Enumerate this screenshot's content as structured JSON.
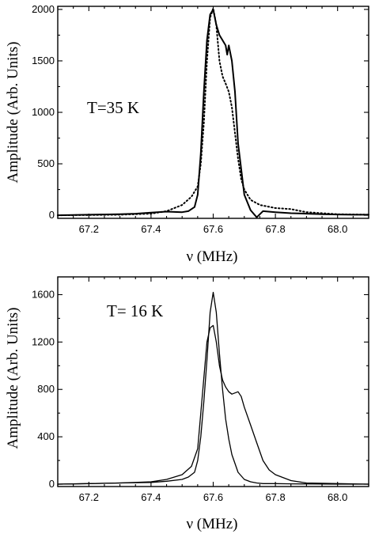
{
  "chart_data": [
    {
      "type": "line",
      "annotation": "T=35 K",
      "xlabel": "ν (MHz)",
      "ylabel": "Amplitude (Arb. Units)",
      "xlim": [
        67.1,
        68.1
      ],
      "ylim": [
        -30,
        2030
      ],
      "xticks": [
        "67.2",
        "67.4",
        "67.6",
        "67.8",
        "68.0"
      ],
      "yticks": [
        "0",
        "500",
        "1000",
        "1500",
        "2000"
      ],
      "series": [
        {
          "style": "solid",
          "x": [
            67.1,
            67.15,
            67.2,
            67.25,
            67.3,
            67.35,
            67.4,
            67.45,
            67.5,
            67.52,
            67.54,
            67.55,
            67.56,
            67.57,
            67.58,
            67.59,
            67.6,
            67.61,
            67.62,
            67.63,
            67.64,
            67.645,
            67.65,
            67.66,
            67.67,
            67.68,
            67.7,
            67.72,
            67.74,
            67.76,
            67.8,
            67.85,
            67.9,
            67.95,
            68.0,
            68.05,
            68.1
          ],
          "y": [
            0,
            2,
            5,
            8,
            10,
            15,
            25,
            35,
            30,
            40,
            80,
            200,
            600,
            1200,
            1700,
            1950,
            2000,
            1850,
            1750,
            1700,
            1650,
            1560,
            1650,
            1500,
            1200,
            700,
            200,
            50,
            -20,
            40,
            30,
            20,
            15,
            10,
            8,
            5,
            5
          ]
        },
        {
          "style": "dotted",
          "x": [
            67.1,
            67.2,
            67.3,
            67.4,
            67.45,
            67.5,
            67.53,
            67.55,
            67.56,
            67.57,
            67.58,
            67.59,
            67.6,
            67.61,
            67.62,
            67.63,
            67.64,
            67.65,
            67.66,
            67.67,
            67.68,
            67.69,
            67.7,
            67.72,
            67.75,
            67.8,
            67.85,
            67.9,
            68.0,
            68.1
          ],
          "y": [
            0,
            2,
            5,
            15,
            40,
            100,
            180,
            280,
            500,
            900,
            1500,
            1920,
            2010,
            1850,
            1500,
            1350,
            1280,
            1200,
            1050,
            800,
            550,
            350,
            250,
            150,
            100,
            70,
            60,
            30,
            10,
            5
          ]
        }
      ]
    },
    {
      "type": "line",
      "annotation": "T= 16 K",
      "xlabel": "ν (MHz)",
      "ylabel": "Amplitude (Arb. Units)",
      "xlim": [
        67.1,
        68.1
      ],
      "ylim": [
        -20,
        1750
      ],
      "xticks": [
        "67.2",
        "67.4",
        "67.6",
        "67.8",
        "68.0"
      ],
      "yticks": [
        "0",
        "400",
        "800",
        "1200",
        "1600"
      ],
      "series": [
        {
          "style": "solid",
          "x": [
            67.1,
            67.2,
            67.3,
            67.4,
            67.45,
            67.5,
            67.52,
            67.54,
            67.55,
            67.56,
            67.57,
            67.58,
            67.59,
            67.6,
            67.61,
            67.62,
            67.63,
            67.64,
            67.65,
            67.66,
            67.68,
            67.7,
            67.72,
            67.74,
            67.76,
            67.8,
            67.85,
            67.9,
            68.0,
            68.1
          ],
          "y": [
            0,
            5,
            10,
            15,
            25,
            40,
            60,
            100,
            200,
            400,
            700,
            1050,
            1450,
            1620,
            1450,
            1100,
            800,
            550,
            380,
            250,
            100,
            40,
            20,
            10,
            5,
            5,
            3,
            2,
            0,
            0
          ]
        },
        {
          "style": "solid",
          "x": [
            67.1,
            67.2,
            67.3,
            67.4,
            67.45,
            67.5,
            67.53,
            67.55,
            67.56,
            67.57,
            67.58,
            67.59,
            67.6,
            67.61,
            67.62,
            67.63,
            67.64,
            67.65,
            67.66,
            67.67,
            67.68,
            67.69,
            67.7,
            67.72,
            67.74,
            67.76,
            67.78,
            67.8,
            67.82,
            67.85,
            67.9,
            68.0,
            68.1
          ],
          "y": [
            0,
            5,
            10,
            20,
            40,
            80,
            150,
            300,
            600,
            900,
            1200,
            1320,
            1340,
            1200,
            1000,
            880,
            820,
            780,
            760,
            770,
            780,
            740,
            650,
            500,
            350,
            200,
            120,
            80,
            60,
            30,
            10,
            5,
            0
          ]
        }
      ]
    }
  ]
}
